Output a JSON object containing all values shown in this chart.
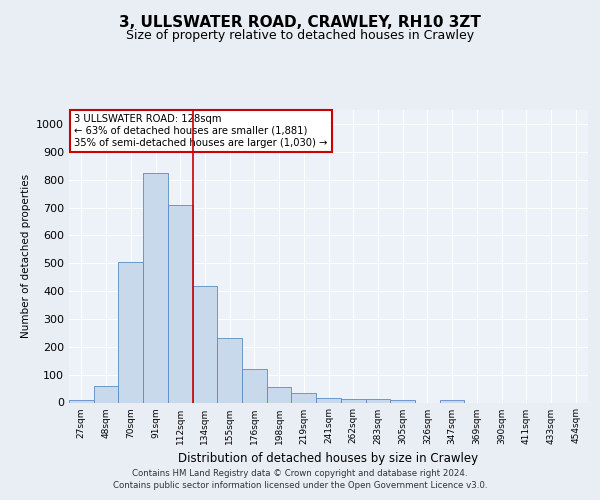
{
  "title1": "3, ULLSWATER ROAD, CRAWLEY, RH10 3ZT",
  "title2": "Size of property relative to detached houses in Crawley",
  "xlabel": "Distribution of detached houses by size in Crawley",
  "ylabel": "Number of detached properties",
  "categories": [
    "27sqm",
    "48sqm",
    "70sqm",
    "91sqm",
    "112sqm",
    "134sqm",
    "155sqm",
    "176sqm",
    "198sqm",
    "219sqm",
    "241sqm",
    "262sqm",
    "283sqm",
    "305sqm",
    "326sqm",
    "347sqm",
    "369sqm",
    "390sqm",
    "411sqm",
    "433sqm",
    "454sqm"
  ],
  "values": [
    10,
    60,
    505,
    825,
    710,
    420,
    230,
    120,
    57,
    35,
    15,
    12,
    12,
    10,
    0,
    10,
    0,
    0,
    0,
    0,
    0
  ],
  "bar_color": "#c9d9ec",
  "bar_edge_color": "#5b8ac5",
  "vline_x": 4.5,
  "vline_color": "#cc0000",
  "annotation_text": "3 ULLSWATER ROAD: 128sqm\n← 63% of detached houses are smaller (1,881)\n35% of semi-detached houses are larger (1,030) →",
  "annotation_box_color": "#ffffff",
  "annotation_box_edge": "#cc0000",
  "footer1": "Contains HM Land Registry data © Crown copyright and database right 2024.",
  "footer2": "Contains public sector information licensed under the Open Government Licence v3.0.",
  "ylim": [
    0,
    1050
  ],
  "yticks": [
    0,
    100,
    200,
    300,
    400,
    500,
    600,
    700,
    800,
    900,
    1000
  ],
  "bg_color": "#e8eef4",
  "plot_bg_color": "#edf2f8",
  "grid_color": "#ffffff",
  "title1_fontsize": 11,
  "title2_fontsize": 9
}
